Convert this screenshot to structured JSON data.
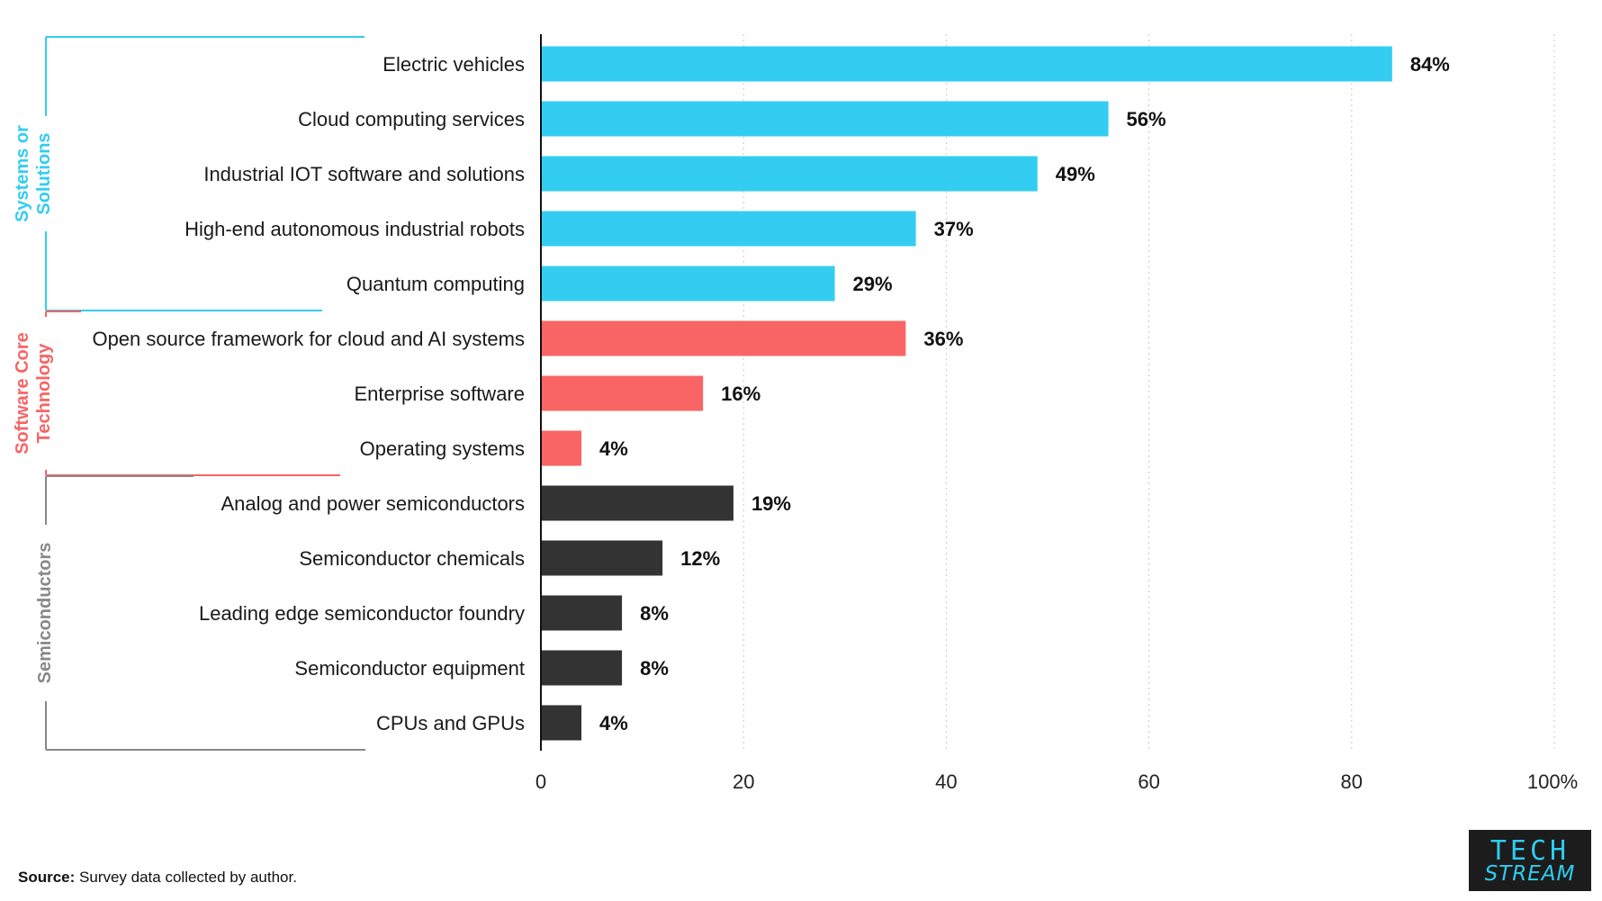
{
  "chart_data": {
    "type": "bar",
    "orientation": "horizontal",
    "categories": [
      "Electric vehicles",
      "Cloud computing services",
      "Industrial IOT software and solutions",
      "High-end autonomous industrial robots",
      "Quantum computing",
      "Open source framework for cloud and AI systems",
      "Enterprise software",
      "Operating systems",
      "Analog and power semiconductors",
      "Semiconductor chemicals",
      "Leading edge semiconductor foundry",
      "Semiconductor equipment",
      "CPUs and GPUs"
    ],
    "values": [
      84,
      56,
      49,
      37,
      29,
      36,
      16,
      4,
      19,
      12,
      8,
      8,
      4
    ],
    "value_labels": [
      "84%",
      "56%",
      "49%",
      "37%",
      "29%",
      "36%",
      "16%",
      "4%",
      "19%",
      "12%",
      "8%",
      "8%",
      "4%"
    ],
    "groups": [
      {
        "label_lines": [
          "Systems or",
          "Solutions"
        ],
        "color": "#33cdf2",
        "start": 0,
        "end": 4
      },
      {
        "label_lines": [
          "Software Core",
          "Technology"
        ],
        "color": "#f96464",
        "start": 5,
        "end": 7
      },
      {
        "label_lines": [
          "Semiconductors"
        ],
        "color": "#888888",
        "start": 8,
        "end": 12
      }
    ],
    "bar_colors": [
      "#33cdf2",
      "#33cdf2",
      "#33cdf2",
      "#33cdf2",
      "#33cdf2",
      "#f96464",
      "#f96464",
      "#f96464",
      "#333333",
      "#333333",
      "#333333",
      "#333333",
      "#333333"
    ],
    "xlim": [
      0,
      100
    ],
    "xticks": [
      0,
      20,
      40,
      60,
      80,
      100
    ],
    "xtick_labels": [
      "0",
      "20",
      "40",
      "60",
      "80",
      "100%"
    ],
    "grid": "vertical dotted",
    "legend": "none"
  },
  "source": {
    "label": "Source:",
    "text": " Survey data collected by author."
  },
  "logo": {
    "line1": "TECH",
    "line2": "STREAM"
  }
}
